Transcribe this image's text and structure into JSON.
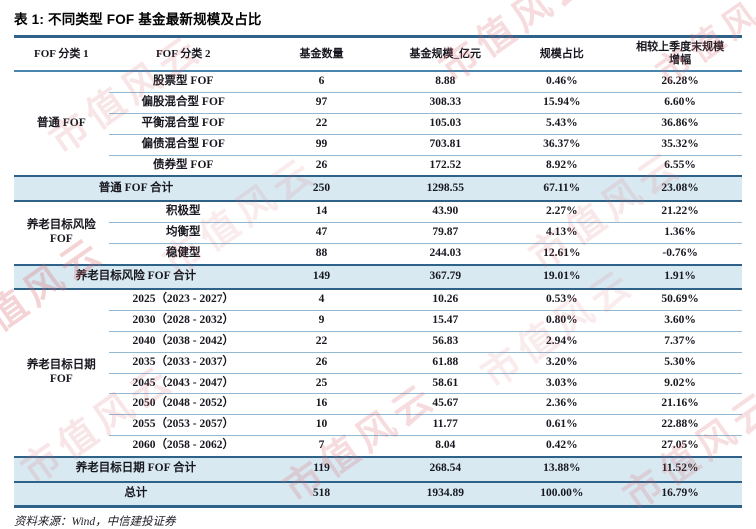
{
  "title": "表 1: 不同类型 FOF 基金最新规模及占比",
  "source_note": "资料来源：Wind，中信建投证券",
  "watermark": {
    "text": "市值风云"
  },
  "colors": {
    "accent": "#2e6289",
    "headline": "#4a85ad",
    "line": "#93b9d3",
    "highlight": "#d9e9f2",
    "ink": "#17171f",
    "wm": "#d9666d"
  },
  "table": {
    "columns": [
      "FOF 分类 1",
      "FOF 分类 2",
      "基金数量",
      "基金规模_亿元",
      "规模占比",
      "相较上季度末规模增幅"
    ],
    "sections": [
      {
        "type": "group",
        "label": "普通 FOF",
        "rows": [
          [
            "股票型 FOF",
            "6",
            "8.88",
            "0.46%",
            "26.28%"
          ],
          [
            "偏股混合型 FOF",
            "97",
            "308.33",
            "15.94%",
            "6.60%"
          ],
          [
            "平衡混合型 FOF",
            "22",
            "105.03",
            "5.43%",
            "36.86%"
          ],
          [
            "偏债混合型 FOF",
            "99",
            "703.81",
            "36.37%",
            "35.32%"
          ],
          [
            "债券型 FOF",
            "26",
            "172.52",
            "8.92%",
            "6.55%"
          ]
        ]
      },
      {
        "type": "summary",
        "label": "普通 FOF 合计",
        "values": [
          "250",
          "1298.55",
          "67.11%",
          "23.08%"
        ]
      },
      {
        "type": "group",
        "label": "养老目标风险\nFOF",
        "rows": [
          [
            "积极型",
            "14",
            "43.90",
            "2.27%",
            "21.22%"
          ],
          [
            "均衡型",
            "47",
            "79.87",
            "4.13%",
            "1.36%"
          ],
          [
            "稳健型",
            "88",
            "244.03",
            "12.61%",
            "-0.76%"
          ]
        ]
      },
      {
        "type": "summary",
        "label": "养老目标风险 FOF 合计",
        "values": [
          "149",
          "367.79",
          "19.01%",
          "1.91%"
        ]
      },
      {
        "type": "group",
        "label": "养老目标日期\nFOF",
        "rows": [
          [
            "2025（2023 - 2027）",
            "4",
            "10.26",
            "0.53%",
            "50.69%"
          ],
          [
            "2030（2028 - 2032）",
            "9",
            "15.47",
            "0.80%",
            "3.60%"
          ],
          [
            "2040（2038 - 2042）",
            "22",
            "56.83",
            "2.94%",
            "7.37%"
          ],
          [
            "2035（2033 - 2037）",
            "26",
            "61.88",
            "3.20%",
            "5.30%"
          ],
          [
            "2045（2043 - 2047）",
            "25",
            "58.61",
            "3.03%",
            "9.02%"
          ],
          [
            "2050（2048 - 2052）",
            "16",
            "45.67",
            "2.36%",
            "21.16%"
          ],
          [
            "2055（2053 - 2057）",
            "10",
            "11.77",
            "0.61%",
            "22.88%"
          ],
          [
            "2060（2058 - 2062）",
            "7",
            "8.04",
            "0.42%",
            "27.05%"
          ]
        ]
      },
      {
        "type": "summary",
        "label": "养老目标日期 FOF 合计",
        "values": [
          "119",
          "268.54",
          "13.88%",
          "11.52%"
        ]
      },
      {
        "type": "summary",
        "label": "总计",
        "values": [
          "518",
          "1934.89",
          "100.00%",
          "16.79%"
        ]
      }
    ]
  }
}
